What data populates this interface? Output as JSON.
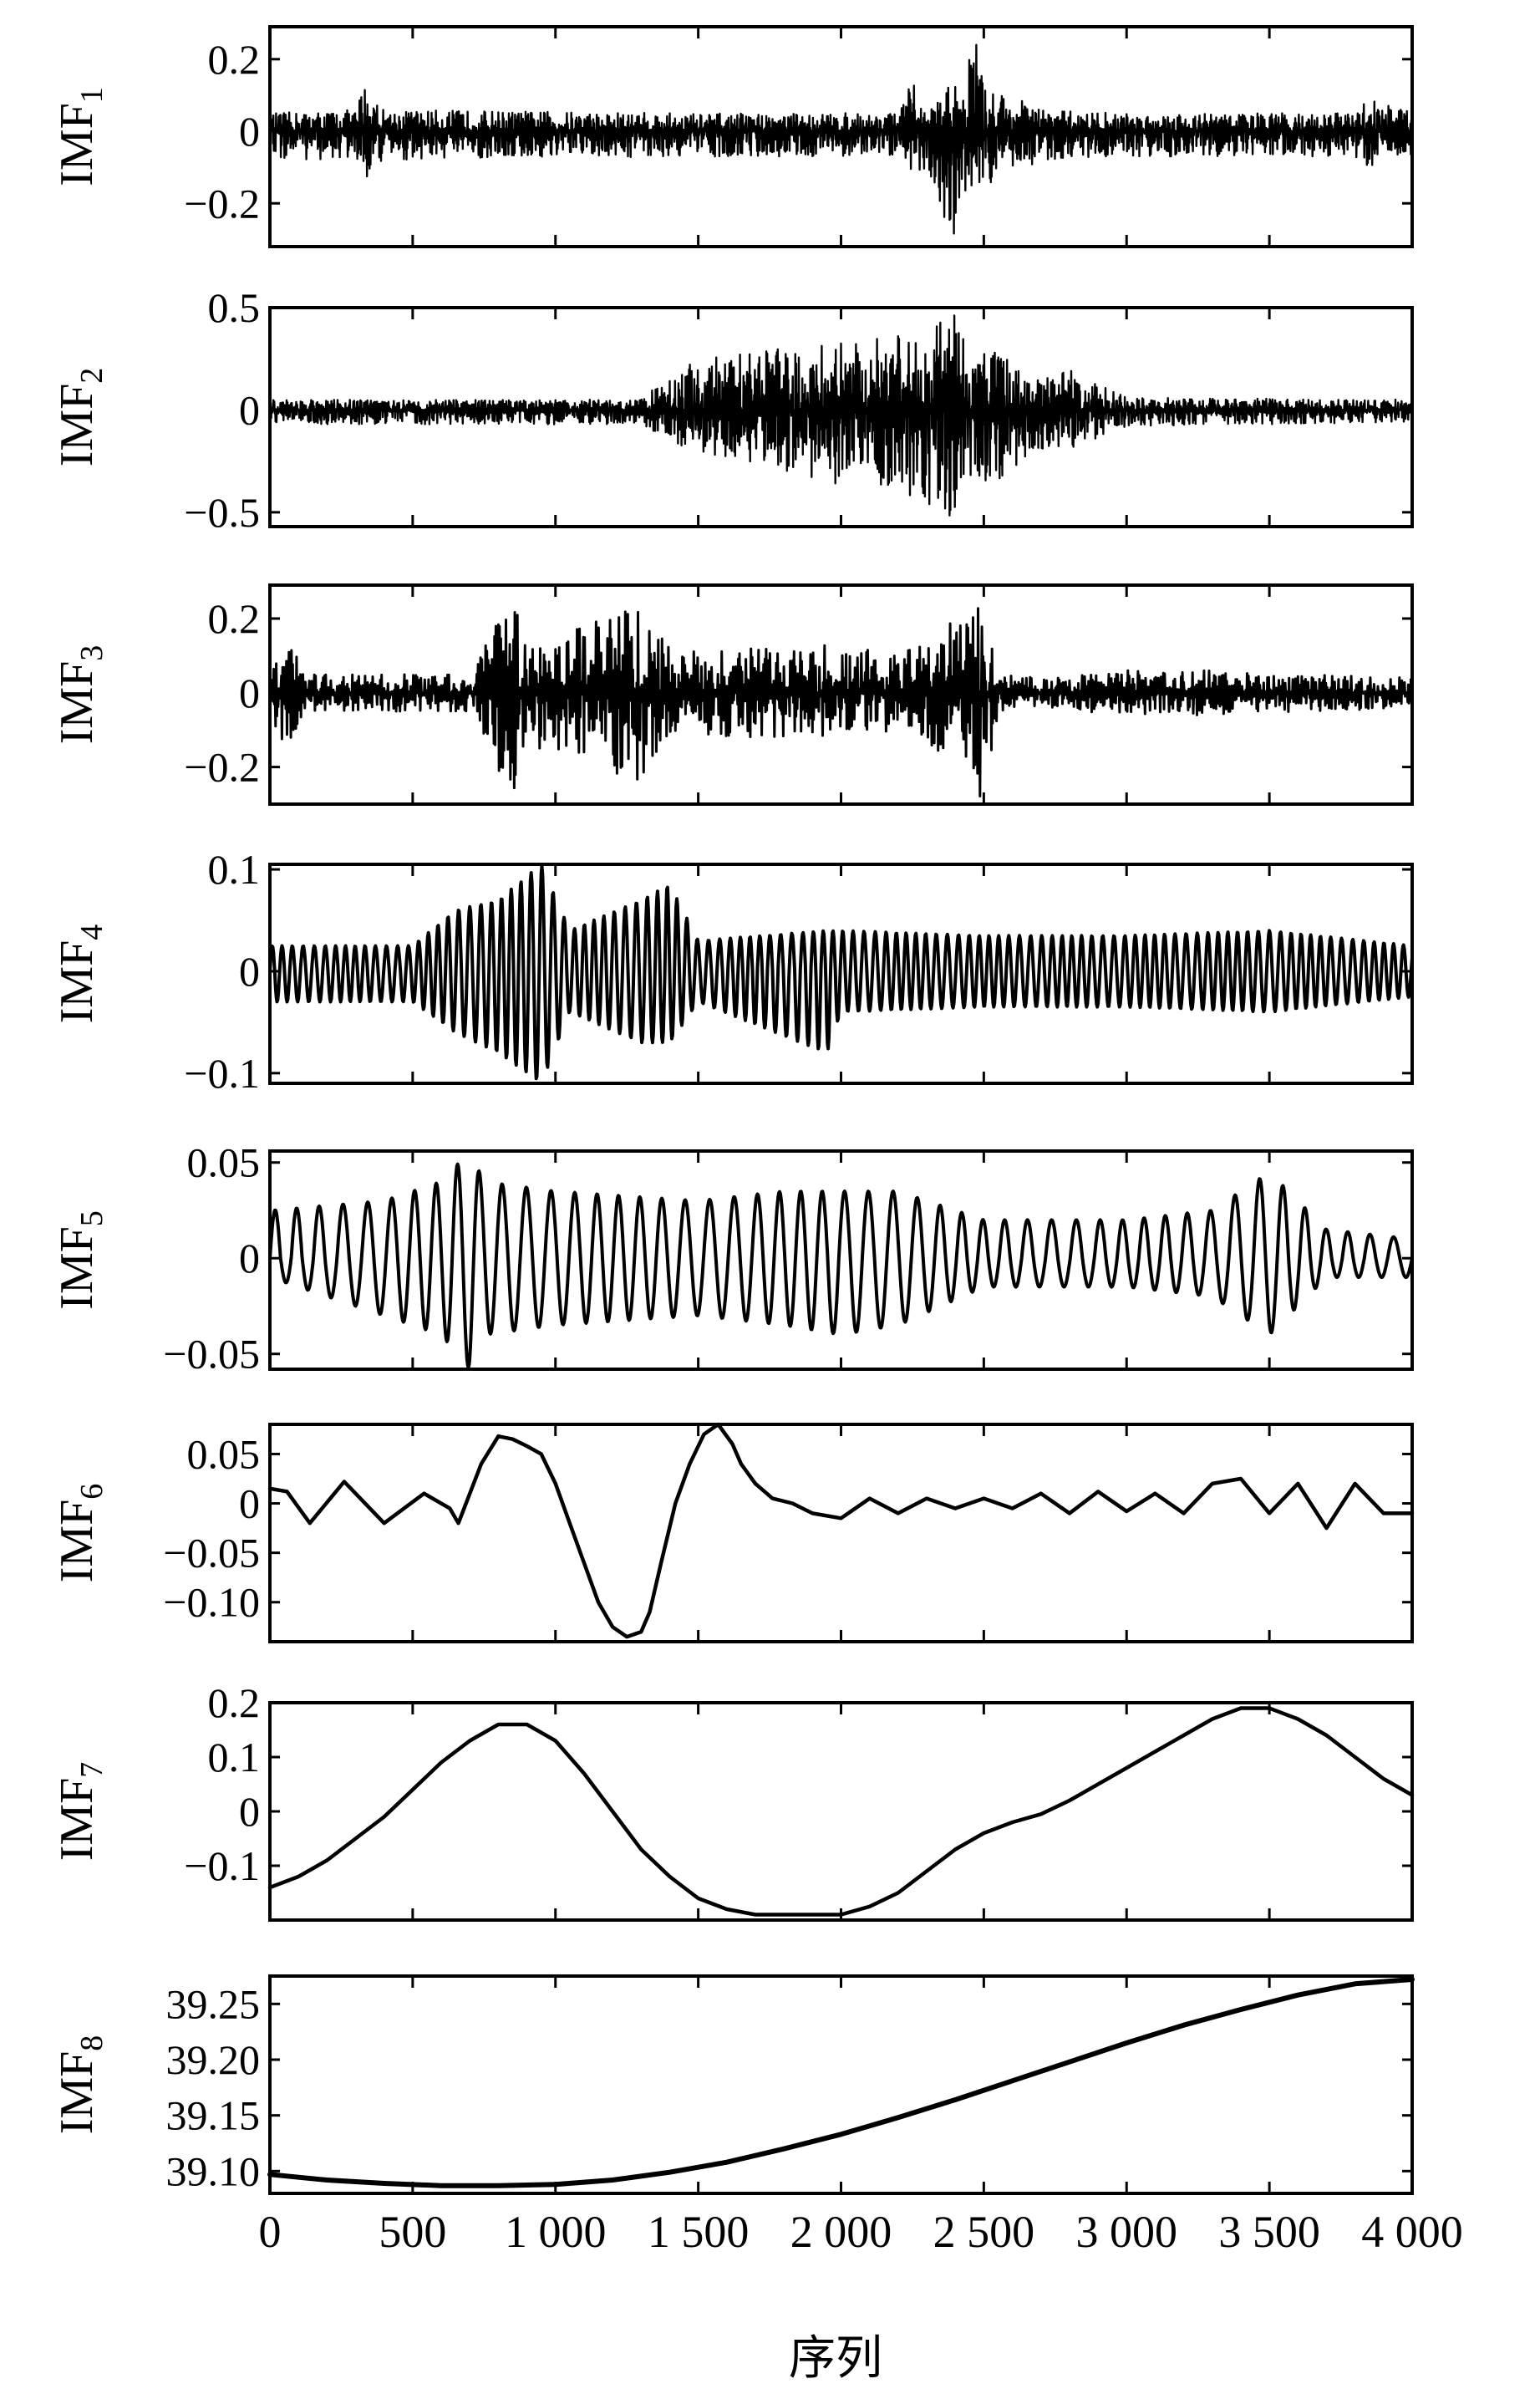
{
  "chart_data": {
    "type": "line",
    "x_ticks": [
      0,
      500,
      1000,
      1500,
      2000,
      2500,
      3000,
      3500,
      4000
    ],
    "x_tick_labels": [
      "0",
      "500",
      "1 000",
      "1 500",
      "2 000",
      "2 500",
      "3 000",
      "3 500",
      "4 000"
    ],
    "xlabel": "序列",
    "xlim": [
      0,
      4000
    ],
    "panels": [
      {
        "name": "IMF",
        "subscript": "1",
        "ylim": [
          -0.32,
          0.29
        ],
        "yticks": [
          0.2,
          0,
          -0.2
        ],
        "ytick_labels": [
          "0.2",
          "0",
          "−0.2"
        ],
        "style": "dense-noise",
        "envelope": {
          "x": [
            0,
            300,
            330,
            400,
            1500,
            2200,
            2250,
            2300,
            2390,
            2420,
            2470,
            2500,
            2600,
            2700,
            3000,
            3800,
            3850,
            4000
          ],
          "upper": [
            0.05,
            0.06,
            0.14,
            0.06,
            0.05,
            0.05,
            0.14,
            0.05,
            0.14,
            0.12,
            0.29,
            0.12,
            0.1,
            0.06,
            0.05,
            0.05,
            0.1,
            0.05
          ],
          "lower": [
            -0.08,
            -0.08,
            -0.14,
            -0.08,
            -0.07,
            -0.07,
            -0.12,
            -0.1,
            -0.32,
            -0.2,
            -0.22,
            -0.15,
            -0.12,
            -0.08,
            -0.07,
            -0.07,
            -0.1,
            -0.07
          ]
        }
      },
      {
        "name": "IMF",
        "subscript": "2",
        "ylim": [
          -0.57,
          0.5
        ],
        "yticks": [
          0.5,
          0,
          -0.5
        ],
        "ytick_labels": [
          "0.5",
          "0",
          "−0.5"
        ],
        "style": "dense-noise",
        "envelope": {
          "x": [
            0,
            1300,
            1380,
            1500,
            1800,
            2100,
            2300,
            2400,
            2450,
            2550,
            2700,
            2800,
            3000,
            4000
          ],
          "upper": [
            0.05,
            0.05,
            0.15,
            0.25,
            0.3,
            0.35,
            0.38,
            0.5,
            0.3,
            0.3,
            0.15,
            0.2,
            0.06,
            0.05
          ],
          "lower": [
            -0.07,
            -0.07,
            -0.15,
            -0.2,
            -0.3,
            -0.4,
            -0.45,
            -0.57,
            -0.35,
            -0.35,
            -0.2,
            -0.2,
            -0.08,
            -0.06
          ]
        }
      },
      {
        "name": "IMF",
        "subscript": "3",
        "ylim": [
          -0.3,
          0.29
        ],
        "yticks": [
          0.2,
          0,
          -0.2
        ],
        "ytick_labels": [
          "0.2",
          "0",
          "−0.2"
        ],
        "style": "noise",
        "envelope": {
          "x": [
            0,
            60,
            120,
            700,
            850,
            900,
            1000,
            1300,
            1400,
            1700,
            2000,
            2200,
            2400,
            2500,
            2550,
            2700,
            3000,
            3300,
            4000
          ],
          "upper": [
            0.05,
            0.18,
            0.05,
            0.05,
            0.27,
            0.12,
            0.15,
            0.25,
            0.12,
            0.12,
            0.13,
            0.1,
            0.2,
            0.25,
            0.05,
            0.04,
            0.06,
            0.06,
            0.04
          ],
          "lower": [
            -0.05,
            -0.2,
            -0.05,
            -0.05,
            -0.3,
            -0.15,
            -0.15,
            -0.25,
            -0.12,
            -0.12,
            -0.12,
            -0.1,
            -0.18,
            -0.3,
            -0.05,
            -0.04,
            -0.06,
            -0.06,
            -0.04
          ]
        }
      },
      {
        "name": "IMF",
        "subscript": "4",
        "ylim": [
          -0.11,
          0.105
        ],
        "yticks": [
          0.1,
          0,
          -0.1
        ],
        "ytick_labels": [
          "0.1",
          "0",
          "−0.1"
        ],
        "style": "oscillation",
        "cycles": 110,
        "envelope": {
          "x": [
            0,
            500,
            650,
            800,
            950,
            1050,
            1300,
            1400,
            1500,
            1950,
            2000,
            2500,
            3000,
            3500,
            4000
          ],
          "upper": [
            0.025,
            0.025,
            0.06,
            0.07,
            0.105,
            0.04,
            0.07,
            0.085,
            0.03,
            0.04,
            0.04,
            0.035,
            0.035,
            0.04,
            0.025
          ],
          "lower": [
            -0.03,
            -0.03,
            -0.06,
            -0.08,
            -0.11,
            -0.04,
            -0.07,
            -0.07,
            -0.03,
            -0.08,
            -0.04,
            -0.035,
            -0.035,
            -0.04,
            -0.025
          ]
        }
      },
      {
        "name": "IMF",
        "subscript": "5",
        "ylim": [
          -0.058,
          0.056
        ],
        "yticks": [
          0.05,
          0,
          -0.05
        ],
        "ytick_labels": [
          "0.05",
          "0",
          "−0.05"
        ],
        "style": "oscillation",
        "cycles": 50,
        "envelope": {
          "x": [
            0,
            400,
            600,
            700,
            750,
            1000,
            1500,
            1800,
            2000,
            2200,
            2500,
            3000,
            3300,
            3500,
            3700,
            4000
          ],
          "upper": [
            0.025,
            0.03,
            0.04,
            0.056,
            0.04,
            0.035,
            0.03,
            0.035,
            0.035,
            0.035,
            0.02,
            0.02,
            0.025,
            0.045,
            0.015,
            0.01
          ],
          "lower": [
            -0.01,
            -0.03,
            -0.04,
            -0.058,
            -0.04,
            -0.035,
            -0.03,
            -0.035,
            -0.04,
            -0.035,
            -0.015,
            -0.015,
            -0.02,
            -0.04,
            -0.01,
            -0.01
          ]
        }
      },
      {
        "name": "IMF",
        "subscript": "6",
        "ylim": [
          -0.14,
          0.08
        ],
        "yticks": [
          0.05,
          0,
          -0.05,
          -0.1
        ],
        "ytick_labels": [
          "0.05",
          "0",
          "−0.05",
          "−0.10"
        ],
        "style": "points",
        "x": [
          0,
          60,
          140,
          260,
          400,
          540,
          630,
          660,
          740,
          800,
          850,
          900,
          950,
          1000,
          1050,
          1100,
          1150,
          1200,
          1250,
          1300,
          1330,
          1370,
          1420,
          1470,
          1520,
          1570,
          1620,
          1650,
          1700,
          1760,
          1830,
          1900,
          2000,
          2100,
          2200,
          2300,
          2400,
          2500,
          2600,
          2700,
          2800,
          2900,
          3000,
          3100,
          3200,
          3300,
          3400,
          3500,
          3600,
          3700,
          3800,
          3900,
          4000
        ],
        "y": [
          0.015,
          0.012,
          -0.02,
          0.022,
          -0.02,
          0.01,
          -0.005,
          -0.02,
          0.04,
          0.068,
          0.065,
          0.058,
          0.05,
          0.02,
          -0.02,
          -0.06,
          -0.1,
          -0.125,
          -0.135,
          -0.13,
          -0.11,
          -0.06,
          0.0,
          0.04,
          0.07,
          0.08,
          0.06,
          0.04,
          0.02,
          0.005,
          0.0,
          -0.01,
          -0.015,
          0.005,
          -0.01,
          0.005,
          -0.005,
          0.005,
          -0.005,
          0.01,
          -0.01,
          0.012,
          -0.008,
          0.01,
          -0.01,
          0.02,
          0.025,
          -0.01,
          0.02,
          -0.025,
          0.02,
          -0.01,
          -0.01
        ]
      },
      {
        "name": "IMF",
        "subscript": "7",
        "ylim": [
          -0.2,
          0.2
        ],
        "yticks": [
          0.2,
          0.1,
          0,
          -0.1
        ],
        "ytick_labels": [
          "0.2",
          "0.1",
          "0",
          "−0.1"
        ],
        "style": "points",
        "x": [
          0,
          100,
          200,
          300,
          400,
          500,
          600,
          700,
          800,
          900,
          1000,
          1100,
          1200,
          1300,
          1400,
          1500,
          1600,
          1700,
          1800,
          1900,
          2000,
          2100,
          2200,
          2300,
          2400,
          2500,
          2600,
          2700,
          2800,
          2900,
          3000,
          3100,
          3200,
          3300,
          3400,
          3500,
          3600,
          3700,
          3800,
          3900,
          4000
        ],
        "y": [
          -0.14,
          -0.12,
          -0.09,
          -0.05,
          -0.01,
          0.04,
          0.09,
          0.13,
          0.16,
          0.16,
          0.13,
          0.07,
          0.0,
          -0.07,
          -0.12,
          -0.16,
          -0.18,
          -0.19,
          -0.19,
          -0.19,
          -0.19,
          -0.175,
          -0.15,
          -0.11,
          -0.07,
          -0.04,
          -0.02,
          -0.005,
          0.02,
          0.05,
          0.08,
          0.11,
          0.14,
          0.17,
          0.19,
          0.19,
          0.17,
          0.14,
          0.1,
          0.06,
          0.03
        ]
      },
      {
        "name": "IMF",
        "subscript": "8",
        "ylim": [
          39.08,
          39.275
        ],
        "yticks": [
          39.25,
          39.2,
          39.15,
          39.1
        ],
        "ytick_labels": [
          "39.25",
          "39.20",
          "39.15",
          "39.10"
        ],
        "style": "points",
        "x": [
          0,
          200,
          400,
          600,
          800,
          1000,
          1200,
          1400,
          1600,
          1800,
          2000,
          2200,
          2400,
          2600,
          2800,
          3000,
          3200,
          3400,
          3600,
          3800,
          4000
        ],
        "y": [
          39.097,
          39.092,
          39.089,
          39.087,
          39.087,
          39.088,
          39.092,
          39.099,
          39.108,
          39.12,
          39.133,
          39.148,
          39.164,
          39.181,
          39.198,
          39.215,
          39.231,
          39.245,
          39.258,
          39.268,
          39.272
        ]
      }
    ]
  }
}
